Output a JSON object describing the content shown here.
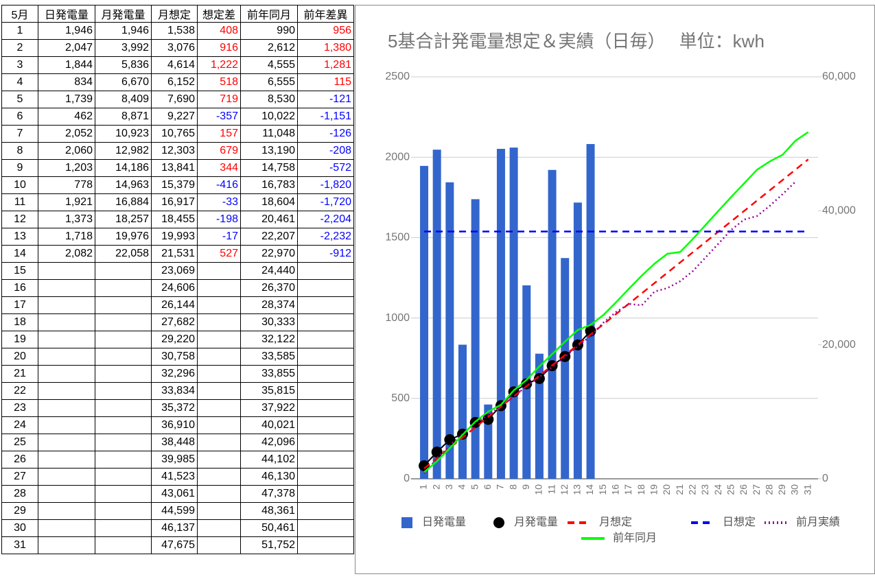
{
  "table": {
    "header": [
      "5月",
      "日発電量",
      "月発電量",
      "月想定",
      "想定差",
      "前年同月",
      "前年差異"
    ],
    "rows": [
      [
        "1",
        "1,946",
        "1,946",
        "1,538",
        "408",
        "990",
        "956"
      ],
      [
        "2",
        "2,047",
        "3,992",
        "3,076",
        "916",
        "2,612",
        "1,380"
      ],
      [
        "3",
        "1,844",
        "5,836",
        "4,614",
        "1,222",
        "4,555",
        "1,281"
      ],
      [
        "4",
        "834",
        "6,670",
        "6,152",
        "518",
        "6,555",
        "115"
      ],
      [
        "5",
        "1,739",
        "8,409",
        "7,690",
        "719",
        "8,530",
        "-121"
      ],
      [
        "6",
        "462",
        "8,871",
        "9,227",
        "-357",
        "10,022",
        "-1,151"
      ],
      [
        "7",
        "2,052",
        "10,923",
        "10,765",
        "157",
        "11,048",
        "-126"
      ],
      [
        "8",
        "2,060",
        "12,982",
        "12,303",
        "679",
        "13,190",
        "-208"
      ],
      [
        "9",
        "1,203",
        "14,186",
        "13,841",
        "344",
        "14,758",
        "-572"
      ],
      [
        "10",
        "778",
        "14,963",
        "15,379",
        "-416",
        "16,783",
        "-1,820"
      ],
      [
        "11",
        "1,921",
        "16,884",
        "16,917",
        "-33",
        "18,604",
        "-1,720"
      ],
      [
        "12",
        "1,373",
        "18,257",
        "18,455",
        "-198",
        "20,461",
        "-2,204"
      ],
      [
        "13",
        "1,718",
        "19,976",
        "19,993",
        "-17",
        "22,207",
        "-2,232"
      ],
      [
        "14",
        "2,082",
        "22,058",
        "21,531",
        "527",
        "22,970",
        "-912"
      ],
      [
        "15",
        null,
        null,
        "23,069",
        null,
        "24,440",
        null
      ],
      [
        "16",
        null,
        null,
        "24,606",
        null,
        "26,370",
        null
      ],
      [
        "17",
        null,
        null,
        "26,144",
        null,
        "28,374",
        null
      ],
      [
        "18",
        null,
        null,
        "27,682",
        null,
        "30,333",
        null
      ],
      [
        "19",
        null,
        null,
        "29,220",
        null,
        "32,122",
        null
      ],
      [
        "20",
        null,
        null,
        "30,758",
        null,
        "33,585",
        null
      ],
      [
        "21",
        null,
        null,
        "32,296",
        null,
        "33,855",
        null
      ],
      [
        "22",
        null,
        null,
        "33,834",
        null,
        "35,815",
        null
      ],
      [
        "23",
        null,
        null,
        "35,372",
        null,
        "37,922",
        null
      ],
      [
        "24",
        null,
        null,
        "36,910",
        null,
        "40,021",
        null
      ],
      [
        "25",
        null,
        null,
        "38,448",
        null,
        "42,096",
        null
      ],
      [
        "26",
        null,
        null,
        "39,985",
        null,
        "44,102",
        null
      ],
      [
        "27",
        null,
        null,
        "41,523",
        null,
        "46,130",
        null
      ],
      [
        "28",
        null,
        null,
        "43,061",
        null,
        "47,378",
        null
      ],
      [
        "29",
        null,
        null,
        "44,599",
        null,
        "48,361",
        null
      ],
      [
        "30",
        null,
        null,
        "46,137",
        null,
        "50,461",
        null
      ],
      [
        "31",
        null,
        null,
        "47,675",
        null,
        "51,752",
        null
      ]
    ]
  },
  "chart_data": {
    "type": "combo",
    "title": "5基合計発電量想定＆実績（日毎）　 単位：kwh",
    "categories": [
      "1",
      "2",
      "3",
      "4",
      "5",
      "6",
      "7",
      "8",
      "9",
      "10",
      "11",
      "12",
      "13",
      "14",
      "15",
      "16",
      "17",
      "18",
      "19",
      "20",
      "21",
      "22",
      "23",
      "24",
      "25",
      "26",
      "27",
      "28",
      "29",
      "30",
      "31"
    ],
    "ylim": [
      0,
      2500
    ],
    "yticks": [
      0,
      500,
      1000,
      1500,
      2000,
      2500
    ],
    "y2lim": [
      0,
      60000
    ],
    "y2ticks": [
      0,
      {
        "value": 20000,
        "label": "20,000"
      },
      {
        "value": 40000,
        "label": "40,000"
      },
      {
        "value": 60000,
        "label": "60,000"
      }
    ],
    "grid": true,
    "series": [
      {
        "name": "日発電量",
        "type": "bar",
        "color": "#3366cc",
        "values": [
          1946,
          2047,
          1844,
          834,
          1739,
          462,
          2052,
          2060,
          1203,
          778,
          1921,
          1373,
          1718,
          2082,
          null,
          null,
          null,
          null,
          null,
          null,
          null,
          null,
          null,
          null,
          null,
          null,
          null,
          null,
          null,
          null,
          null
        ]
      },
      {
        "name": "月発電量",
        "type": "line",
        "marker": "circle",
        "color": "#000000",
        "axis": "y2",
        "values": [
          1946,
          3992,
          5836,
          6670,
          8409,
          8871,
          10923,
          12982,
          14186,
          14963,
          16884,
          18257,
          19976,
          22058,
          null,
          null,
          null,
          null,
          null,
          null,
          null,
          null,
          null,
          null,
          null,
          null,
          null,
          null,
          null,
          null,
          null
        ]
      },
      {
        "name": "月想定",
        "type": "line",
        "line_style": "dashed",
        "color": "#ff0000",
        "axis": "y2",
        "values": [
          1538,
          3076,
          4614,
          6152,
          7690,
          9227,
          10765,
          12303,
          13841,
          15379,
          16917,
          18455,
          19993,
          21531,
          23069,
          24606,
          26144,
          27682,
          29220,
          30758,
          32296,
          33834,
          35372,
          36910,
          38448,
          39985,
          41523,
          43061,
          44599,
          46137,
          47675
        ]
      },
      {
        "name": "日想定",
        "type": "line",
        "line_style": "dashed",
        "color": "#0000ff",
        "values": [
          1538,
          1538,
          1538,
          1538,
          1538,
          1538,
          1538,
          1538,
          1538,
          1538,
          1538,
          1538,
          1538,
          1538,
          1538,
          1538,
          1538,
          1538,
          1538,
          1538,
          1538,
          1538,
          1538,
          1538,
          1538,
          1538,
          1538,
          1538,
          1538,
          1538,
          1538
        ]
      },
      {
        "name": "前月実績",
        "type": "line",
        "line_style": "dotted",
        "color": "#990099",
        "axis": "y2",
        "values": [
          800,
          3000,
          5000,
          6700,
          8400,
          9500,
          10800,
          12300,
          13800,
          15200,
          16700,
          18200,
          19800,
          21300,
          23300,
          24900,
          26100,
          25900,
          27950,
          28460,
          29490,
          31020,
          33070,
          35120,
          37170,
          38700,
          39220,
          40750,
          42490,
          44330,
          null
        ]
      },
      {
        "name": "前年同月",
        "type": "line",
        "color": "#00ff00",
        "axis": "y2",
        "values": [
          990,
          2612,
          4555,
          6555,
          8530,
          10022,
          11048,
          13190,
          14758,
          16783,
          18604,
          20461,
          22207,
          22970,
          24440,
          26370,
          28374,
          30333,
          32122,
          33585,
          33855,
          35815,
          37922,
          40021,
          42096,
          44102,
          46130,
          47378,
          48361,
          50461,
          51752
        ]
      }
    ]
  }
}
